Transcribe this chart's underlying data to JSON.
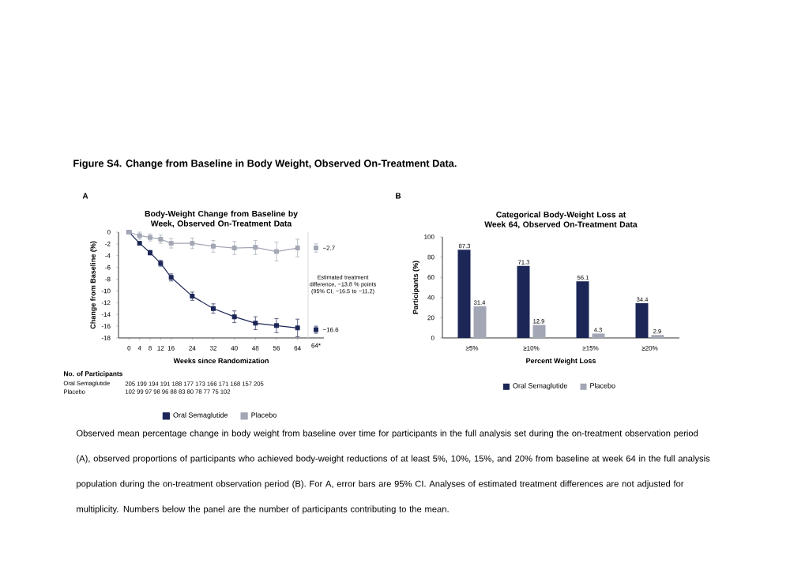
{
  "chart_data": [
    {
      "type": "line",
      "title": "Body-Weight Change from Baseline by Week, Observed On-Treatment Data",
      "xlabel": "Weeks since Randomization",
      "ylabel": "Change from Baseline (%)",
      "x": [
        0,
        4,
        8,
        12,
        16,
        24,
        32,
        40,
        48,
        56,
        64
      ],
      "xlim": [
        -4,
        74
      ],
      "ylim": [
        -18,
        0
      ],
      "xticks": [
        0,
        4,
        8,
        12,
        16,
        24,
        32,
        40,
        48,
        56,
        64
      ],
      "yticks": [
        0,
        -2,
        -4,
        -6,
        -8,
        -10,
        -12,
        -14,
        -16,
        -18
      ],
      "marker": "square",
      "legend": "bottom",
      "series": [
        {
          "name": "Oral Semaglutide",
          "color": "#1c2757",
          "values": [
            0,
            -1.9,
            -3.5,
            -5.3,
            -7.7,
            -10.9,
            -13.0,
            -14.4,
            -15.5,
            -15.9,
            -16.3
          ],
          "errors": [
            null,
            0.3,
            0.4,
            0.5,
            0.6,
            0.7,
            0.8,
            1.0,
            1.1,
            1.2,
            1.5
          ]
        },
        {
          "name": "Placebo",
          "color": "#a3a7b5",
          "values": [
            0,
            -0.6,
            -0.9,
            -1.2,
            -1.9,
            -1.9,
            -2.4,
            -2.7,
            -2.6,
            -3.3,
            -2.7
          ],
          "errors": [
            null,
            0.6,
            0.6,
            0.7,
            0.8,
            0.9,
            1.0,
            1.1,
            1.2,
            1.6,
            1.5
          ]
        },
        {
          "type": "scatter",
          "x": [
            71
          ],
          "color": "#1c2757",
          "values": [
            -16.6
          ],
          "errors": [
            0.6
          ]
        },
        {
          "type": "scatter",
          "x": [
            71
          ],
          "color": "#a3a7b5",
          "values": [
            -2.7
          ],
          "errors": [
            0.7
          ]
        }
      ],
      "ref_lines": [
        {
          "axis": "x",
          "value": 68,
          "color": "#d9d9d9"
        }
      ],
      "annotations": [
        {
          "text": "−2.7",
          "x": 71,
          "y": -2.7
        },
        {
          "text": "−16.6",
          "x": 71,
          "y": -16.6
        },
        "Estimated treatment difference, −13.8 % points (95% CI, −16.5 to −11.2)",
        "A",
        "Figure S4. Change from Baseline in Body Weight, Observed On-Treatment Data.",
        "No. of Participants",
        "Oral Semaglutide",
        "205 199 194 191 188 177 173 166 171 168 157 205",
        "Placebo",
        "102 99 97 98 96 88 83 80 78 77 75 102",
        "64*",
        "Observed mean percentage change in body weight from baseline over time for participants in the full analysis set during the on-treatment observation period (A), observed proportions of participants who achieved body-weight reductions of at least 5%, 10%, 15%, and 20% from baseline at week 64 in the full analysis population during the on-treatment observation period (B). For A, error bars are 95% CI. Analyses of estimated treatment differences are not adjusted for multiplicity. Numbers below the panel are the number of participants contributing to the mean."
      ]
    },
    {
      "type": "bar",
      "title": "Categorical Body-Weight Loss at Week 64, Observed On-Treatment Data",
      "xlabel": "Percent Weight Loss",
      "ylabel": "Participants (%)",
      "categories": [
        "≥5%",
        "≥10%",
        "≥15%",
        "≥20%"
      ],
      "ylim": [
        0,
        100
      ],
      "yticks": [
        0,
        20,
        40,
        60,
        80,
        100
      ],
      "legend": "bottom",
      "data_labels": true,
      "series": [
        {
          "name": "Oral Semaglutide",
          "color": "#1c2757",
          "values": [
            87.3,
            71.3,
            56.1,
            34.4
          ]
        },
        {
          "name": "Placebo",
          "color": "#a3a7b5",
          "values": [
            31.4,
            12.9,
            4.3,
            2.9
          ]
        }
      ],
      "annotations": [
        "B"
      ]
    }
  ]
}
